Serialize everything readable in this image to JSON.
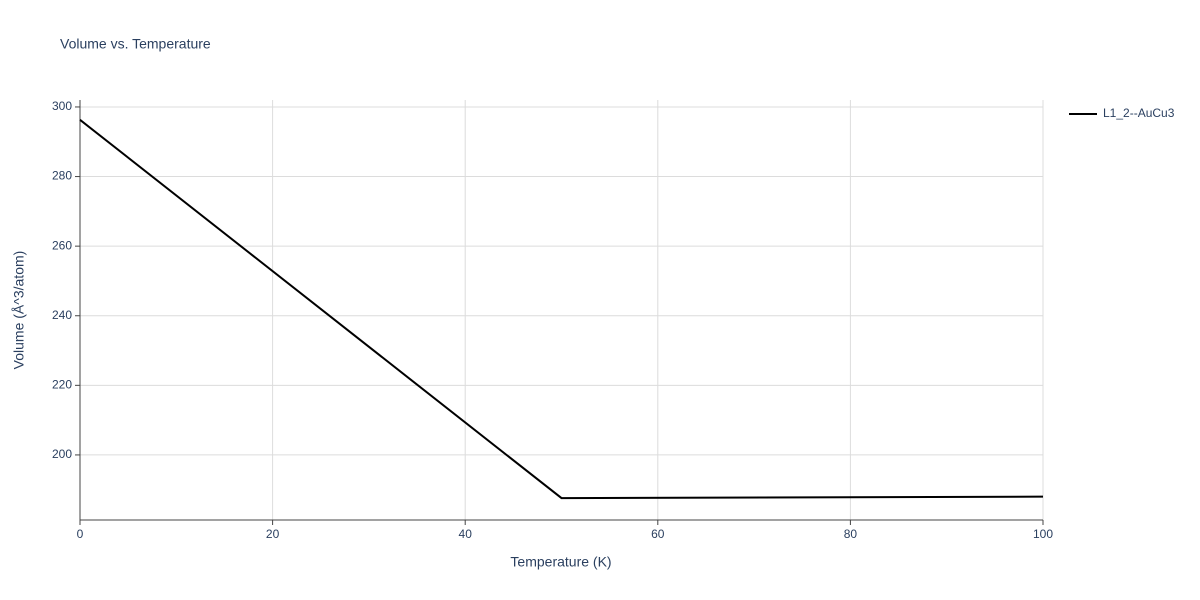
{
  "chart_data": {
    "type": "line",
    "title": "Volume vs. Temperature",
    "x_label": "Temperature (K)",
    "y_label": "Volume (Å^3/atom)",
    "x": [
      0,
      50,
      100
    ],
    "series": [
      {
        "name": "L1_2--AuCu3",
        "color": "#000000",
        "values": [
          296.3,
          187.6,
          188.0
        ]
      }
    ],
    "xlim": [
      0,
      100
    ],
    "xticks": [
      0,
      20,
      40,
      60,
      80,
      100
    ],
    "ylim": [
      181.3,
      302
    ],
    "yticks": [
      200,
      220,
      240,
      260,
      280,
      300
    ],
    "grid": true,
    "legend": "top-right"
  }
}
